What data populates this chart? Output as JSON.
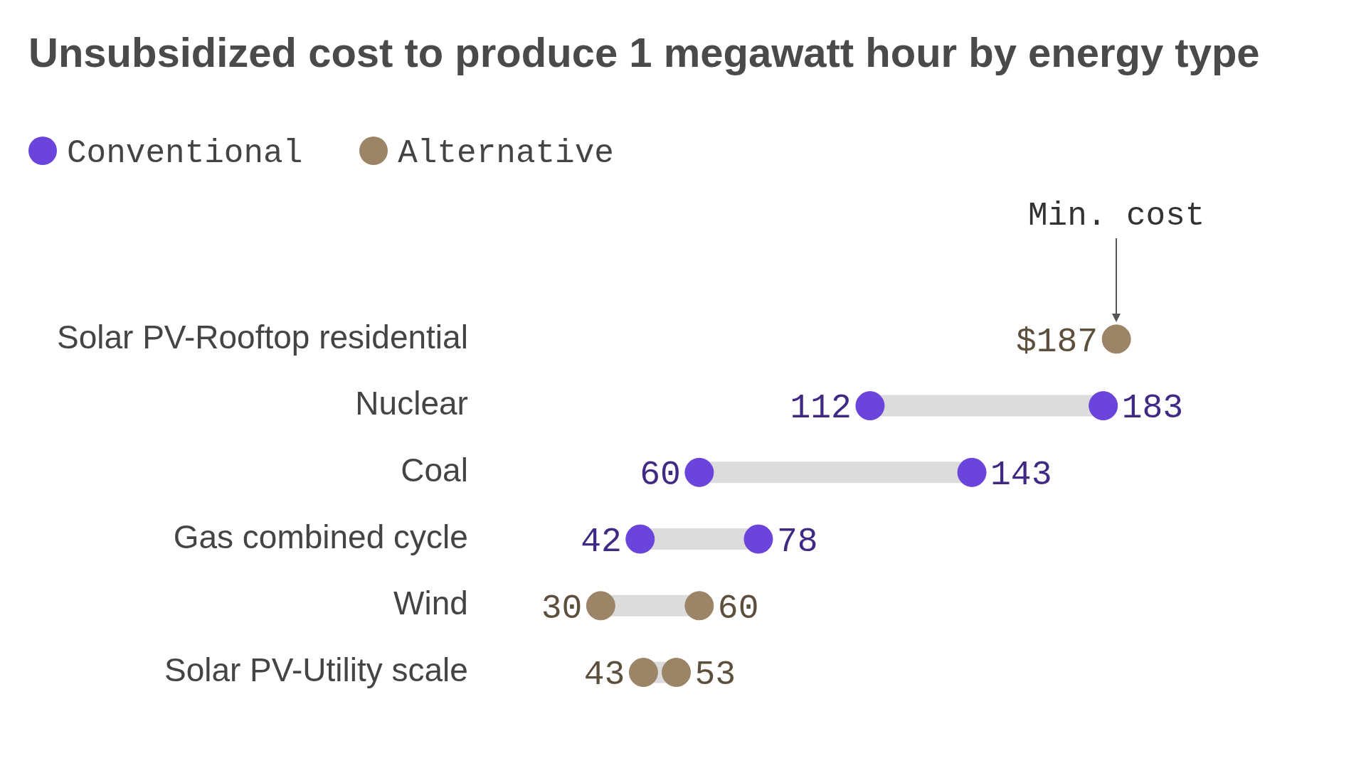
{
  "chart_data": {
    "type": "scatter",
    "orientation": "horizontal",
    "title": "Unsubsidized cost to produce 1 megawatt hour by energy type",
    "categories": [
      "Solar PV-Rooftop residential",
      "Nuclear",
      "Coal",
      "Gas combined cycle",
      "Wind",
      "Solar PV-Utility scale"
    ],
    "legend": "top left",
    "marker": "circle",
    "data_labels": true,
    "annotations": [
      "Min. cost"
    ],
    "series": [
      {
        "name": "Conventional",
        "color": "#6b44dc",
        "values": [
          null,
          112,
          60,
          42,
          null,
          null
        ],
        "value_labels": [
          null,
          "112",
          "60",
          "42",
          null,
          null
        ]
      },
      {
        "color": "#6b44dc",
        "values": [
          null,
          183,
          143,
          78,
          null,
          null
        ],
        "value_labels": [
          null,
          "183",
          "143",
          "78",
          null,
          null
        ]
      },
      {
        "name": "Alternative",
        "color": "#9c8466",
        "values": [
          187,
          null,
          null,
          null,
          30,
          43
        ],
        "value_labels": [
          "$187",
          null,
          null,
          null,
          "30",
          "43"
        ]
      },
      {
        "color": "#9c8466",
        "values": [
          null,
          null,
          null,
          null,
          60,
          53
        ],
        "value_labels": [
          null,
          null,
          null,
          null,
          "60",
          "53"
        ]
      }
    ]
  }
}
